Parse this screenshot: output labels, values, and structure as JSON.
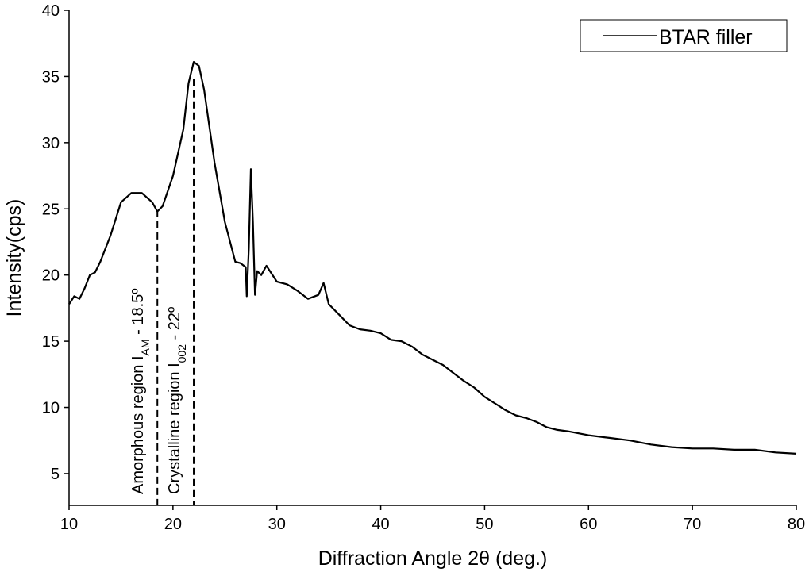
{
  "chart_data": {
    "type": "line",
    "xlabel": "Diffraction Angle 2θ (deg.)",
    "ylabel": "Intensity(cps)",
    "x": [
      10,
      10.5,
      11,
      11.5,
      12,
      12.5,
      13,
      14,
      15,
      16,
      17,
      18,
      18.5,
      19,
      20,
      21,
      21.5,
      22,
      22.5,
      23,
      24,
      25,
      26,
      26.5,
      27,
      27.1,
      27.3,
      27.5,
      27.7,
      27.9,
      28.1,
      28.5,
      29,
      30,
      31,
      32,
      33,
      34,
      34.5,
      35,
      36,
      37,
      38,
      39,
      40,
      41,
      42,
      43,
      44,
      45,
      46,
      47,
      48,
      49,
      50,
      51,
      52,
      53,
      54,
      55,
      56,
      57,
      58,
      60,
      62,
      64,
      66,
      68,
      70,
      72,
      74,
      76,
      78,
      80
    ],
    "series": [
      {
        "name": "BTAR filler",
        "color": "#000000",
        "values": [
          17.8,
          18.4,
          18.2,
          19.0,
          20.0,
          20.2,
          21.0,
          23.0,
          25.5,
          26.2,
          26.2,
          25.5,
          24.8,
          25.2,
          27.5,
          31.0,
          34.5,
          36.1,
          35.8,
          34.0,
          28.5,
          24.0,
          21.0,
          20.9,
          20.6,
          18.4,
          22.0,
          28.0,
          24.0,
          18.5,
          20.3,
          20.0,
          20.7,
          19.5,
          19.3,
          18.8,
          18.2,
          18.5,
          19.4,
          17.8,
          17.0,
          16.2,
          15.9,
          15.8,
          15.6,
          15.1,
          15.0,
          14.6,
          14.0,
          13.6,
          13.2,
          12.6,
          12.0,
          11.5,
          10.8,
          10.3,
          9.8,
          9.4,
          9.2,
          8.9,
          8.5,
          8.3,
          8.2,
          7.9,
          7.7,
          7.5,
          7.2,
          7.0,
          6.9,
          6.9,
          6.8,
          6.8,
          6.6,
          6.5
        ]
      }
    ],
    "xlim": [
      10,
      80
    ],
    "xticks": [
      10,
      20,
      30,
      40,
      50,
      60,
      70,
      80
    ],
    "ylim": [
      2.6,
      40
    ],
    "yticks": [
      5,
      10,
      15,
      20,
      25,
      30,
      35,
      40
    ],
    "legend": "upper right",
    "annotations": [
      {
        "text": "Amorphous region I",
        "sub": "AM",
        "suffix": " - 18.5º",
        "x": 18.5,
        "y": 24.9
      },
      {
        "text": "Crystalline region I",
        "sub": "002",
        "suffix": " - 22º",
        "x": 22,
        "y": 34.8
      }
    ]
  }
}
